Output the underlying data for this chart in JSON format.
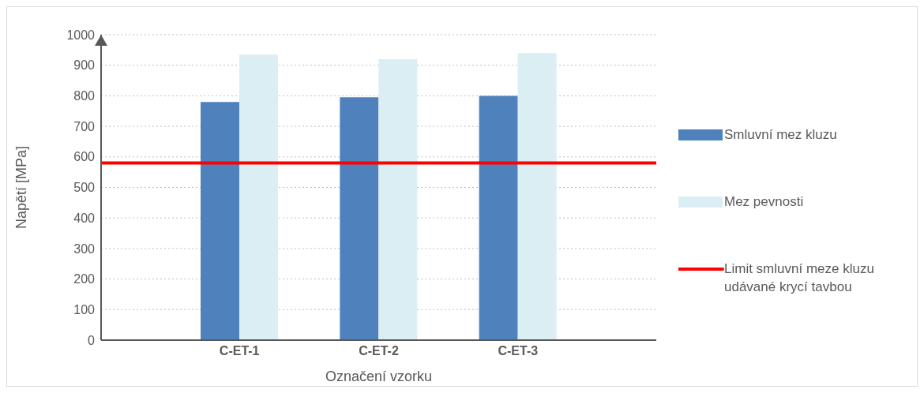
{
  "chart_data": {
    "type": "bar",
    "xlabel": "Označení vzorku",
    "ylabel": "Napětí [MPa]",
    "categories": [
      "C-ET-1",
      "C-ET-2",
      "C-ET-3"
    ],
    "series": [
      {
        "name": "Smluvní mez kluzu",
        "color": "#4f81bd",
        "values": [
          780,
          795,
          800
        ]
      },
      {
        "name": "Mez pevnosti",
        "color": "#dbeef4",
        "values": [
          935,
          920,
          940
        ]
      }
    ],
    "ref_lines": [
      {
        "axis": "y",
        "value": 580,
        "label": "Limit smluvní meze kluzu udávané krycí tavbou",
        "color": "#ff0000"
      }
    ],
    "ylim": [
      0,
      1000
    ],
    "yticks": [
      0,
      100,
      200,
      300,
      400,
      500,
      600,
      700,
      800,
      900,
      1000
    ],
    "grid": "y",
    "legend": "right"
  }
}
